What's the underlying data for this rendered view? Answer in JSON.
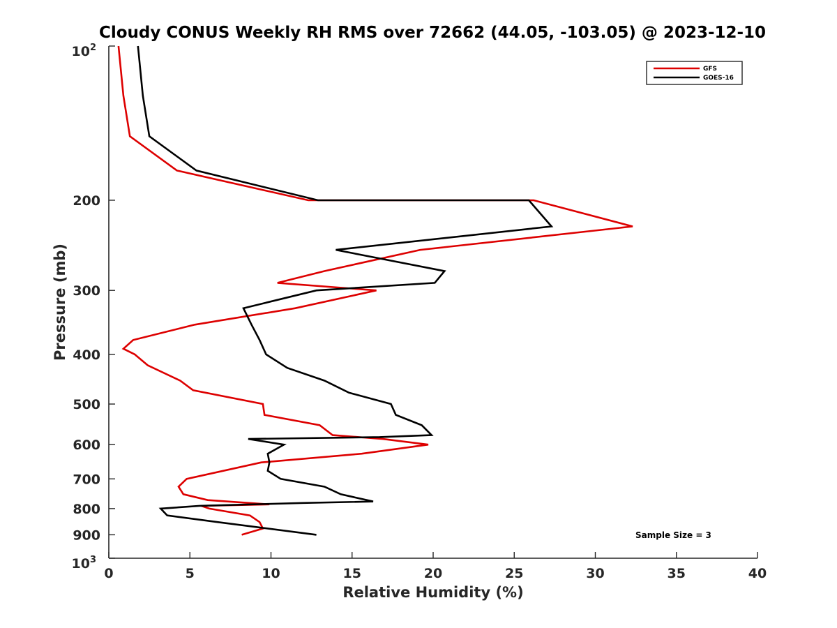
{
  "chart_data": {
    "type": "line",
    "title": "Cloudy CONUS Weekly RH RMS over 72662 (44.05, -103.05) @ 2023-12-10",
    "xlabel": "Relative Humidity (%)",
    "ylabel": "Pressure (mb)",
    "xlim": [
      0,
      40
    ],
    "ylim": [
      1000,
      100
    ],
    "y_scale": "log",
    "y_reversed": true,
    "x_ticks": [
      "0",
      "5",
      "10",
      "15",
      "20",
      "25",
      "30",
      "35",
      "40"
    ],
    "x_tick_values": [
      0,
      5,
      10,
      15,
      20,
      25,
      30,
      35,
      40
    ],
    "y_ticks": [
      {
        "value": 100,
        "base": "10",
        "exp": "2"
      },
      {
        "value": 200,
        "base": "200",
        "exp": ""
      },
      {
        "value": 300,
        "base": "300",
        "exp": ""
      },
      {
        "value": 400,
        "base": "400",
        "exp": ""
      },
      {
        "value": 500,
        "base": "500",
        "exp": ""
      },
      {
        "value": 600,
        "base": "600",
        "exp": ""
      },
      {
        "value": 700,
        "base": "700",
        "exp": ""
      },
      {
        "value": 800,
        "base": "800",
        "exp": ""
      },
      {
        "value": 900,
        "base": "900",
        "exp": ""
      },
      {
        "value": 1000,
        "base": "10",
        "exp": "3"
      }
    ],
    "grid": false,
    "legend_position": "top-right",
    "annotation": "Sample Size = 3",
    "series": [
      {
        "name": "GFS",
        "color": "#dd0000",
        "points": [
          [
            0.6,
            100
          ],
          [
            0.9,
            125
          ],
          [
            1.3,
            150
          ],
          [
            4.2,
            175
          ],
          [
            12.3,
            200
          ],
          [
            26.2,
            200
          ],
          [
            32.3,
            225
          ],
          [
            19.2,
            250
          ],
          [
            13.3,
            275
          ],
          [
            10.4,
            290
          ],
          [
            16.5,
            300
          ],
          [
            11.5,
            325
          ],
          [
            5.3,
            350
          ],
          [
            1.5,
            375
          ],
          [
            0.9,
            390
          ],
          [
            1.6,
            400
          ],
          [
            2.4,
            420
          ],
          [
            4.4,
            450
          ],
          [
            5.2,
            470
          ],
          [
            9.5,
            500
          ],
          [
            9.6,
            525
          ],
          [
            13.0,
            550
          ],
          [
            13.8,
            575
          ],
          [
            16.9,
            585
          ],
          [
            19.7,
            600
          ],
          [
            15.6,
            625
          ],
          [
            9.4,
            650
          ],
          [
            4.8,
            700
          ],
          [
            4.3,
            725
          ],
          [
            4.6,
            750
          ],
          [
            6.1,
            770
          ],
          [
            9.9,
            785
          ],
          [
            5.7,
            790
          ],
          [
            6.2,
            800
          ],
          [
            8.7,
            825
          ],
          [
            9.3,
            850
          ],
          [
            9.5,
            875
          ],
          [
            8.2,
            900
          ]
        ]
      },
      {
        "name": "GOES-16",
        "color": "#000000",
        "points": [
          [
            1.8,
            100
          ],
          [
            2.1,
            125
          ],
          [
            2.5,
            150
          ],
          [
            5.4,
            175
          ],
          [
            12.9,
            200
          ],
          [
            25.9,
            200
          ],
          [
            27.3,
            225
          ],
          [
            14.0,
            250
          ],
          [
            20.7,
            275
          ],
          [
            20.1,
            290
          ],
          [
            12.8,
            300
          ],
          [
            8.3,
            325
          ],
          [
            8.8,
            350
          ],
          [
            9.3,
            375
          ],
          [
            9.7,
            400
          ],
          [
            11.0,
            425
          ],
          [
            13.3,
            450
          ],
          [
            14.8,
            475
          ],
          [
            17.4,
            500
          ],
          [
            17.7,
            525
          ],
          [
            19.3,
            550
          ],
          [
            19.9,
            575
          ],
          [
            16.7,
            580
          ],
          [
            8.6,
            585
          ],
          [
            10.8,
            600
          ],
          [
            9.8,
            625
          ],
          [
            9.9,
            650
          ],
          [
            9.8,
            675
          ],
          [
            10.6,
            700
          ],
          [
            13.3,
            725
          ],
          [
            14.3,
            750
          ],
          [
            16.3,
            775
          ],
          [
            12.0,
            780
          ],
          [
            5.6,
            790
          ],
          [
            3.2,
            800
          ],
          [
            3.6,
            825
          ],
          [
            6.7,
            850
          ],
          [
            12.8,
            900
          ]
        ]
      }
    ]
  }
}
